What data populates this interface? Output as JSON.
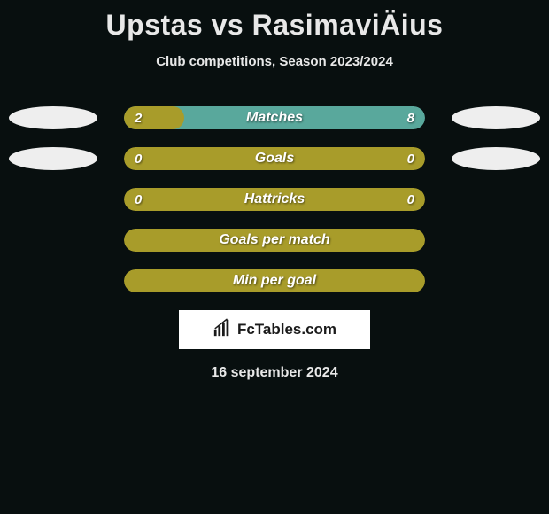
{
  "title": "Upstas vs RasimaviÄius",
  "subtitle": "Club competitions, Season 2023/2024",
  "colors": {
    "olive": "#a89c2a",
    "teal": "#59a89c",
    "oval": "#eeeeee",
    "bg": "#080f0f",
    "text": "#e8e8e8"
  },
  "rows": [
    {
      "label": "Matches",
      "left": "2",
      "right": "8",
      "showVals": true,
      "showOvals": true,
      "bg": "#59a89c",
      "fill": {
        "color": "#a89c2a",
        "leftPct": 0,
        "widthPct": 20
      }
    },
    {
      "label": "Goals",
      "left": "0",
      "right": "0",
      "showVals": true,
      "showOvals": true,
      "bg": "#a89c2a",
      "fill": null
    },
    {
      "label": "Hattricks",
      "left": "0",
      "right": "0",
      "showVals": true,
      "showOvals": false,
      "bg": "#a89c2a",
      "fill": null
    },
    {
      "label": "Goals per match",
      "left": "",
      "right": "",
      "showVals": false,
      "showOvals": false,
      "bg": "#a89c2a",
      "fill": null
    },
    {
      "label": "Min per goal",
      "left": "",
      "right": "",
      "showVals": false,
      "showOvals": false,
      "bg": "#a89c2a",
      "fill": null
    }
  ],
  "logo": {
    "icon_name": "chart-icon",
    "text": "FcTables.com"
  },
  "date": "16 september 2024"
}
